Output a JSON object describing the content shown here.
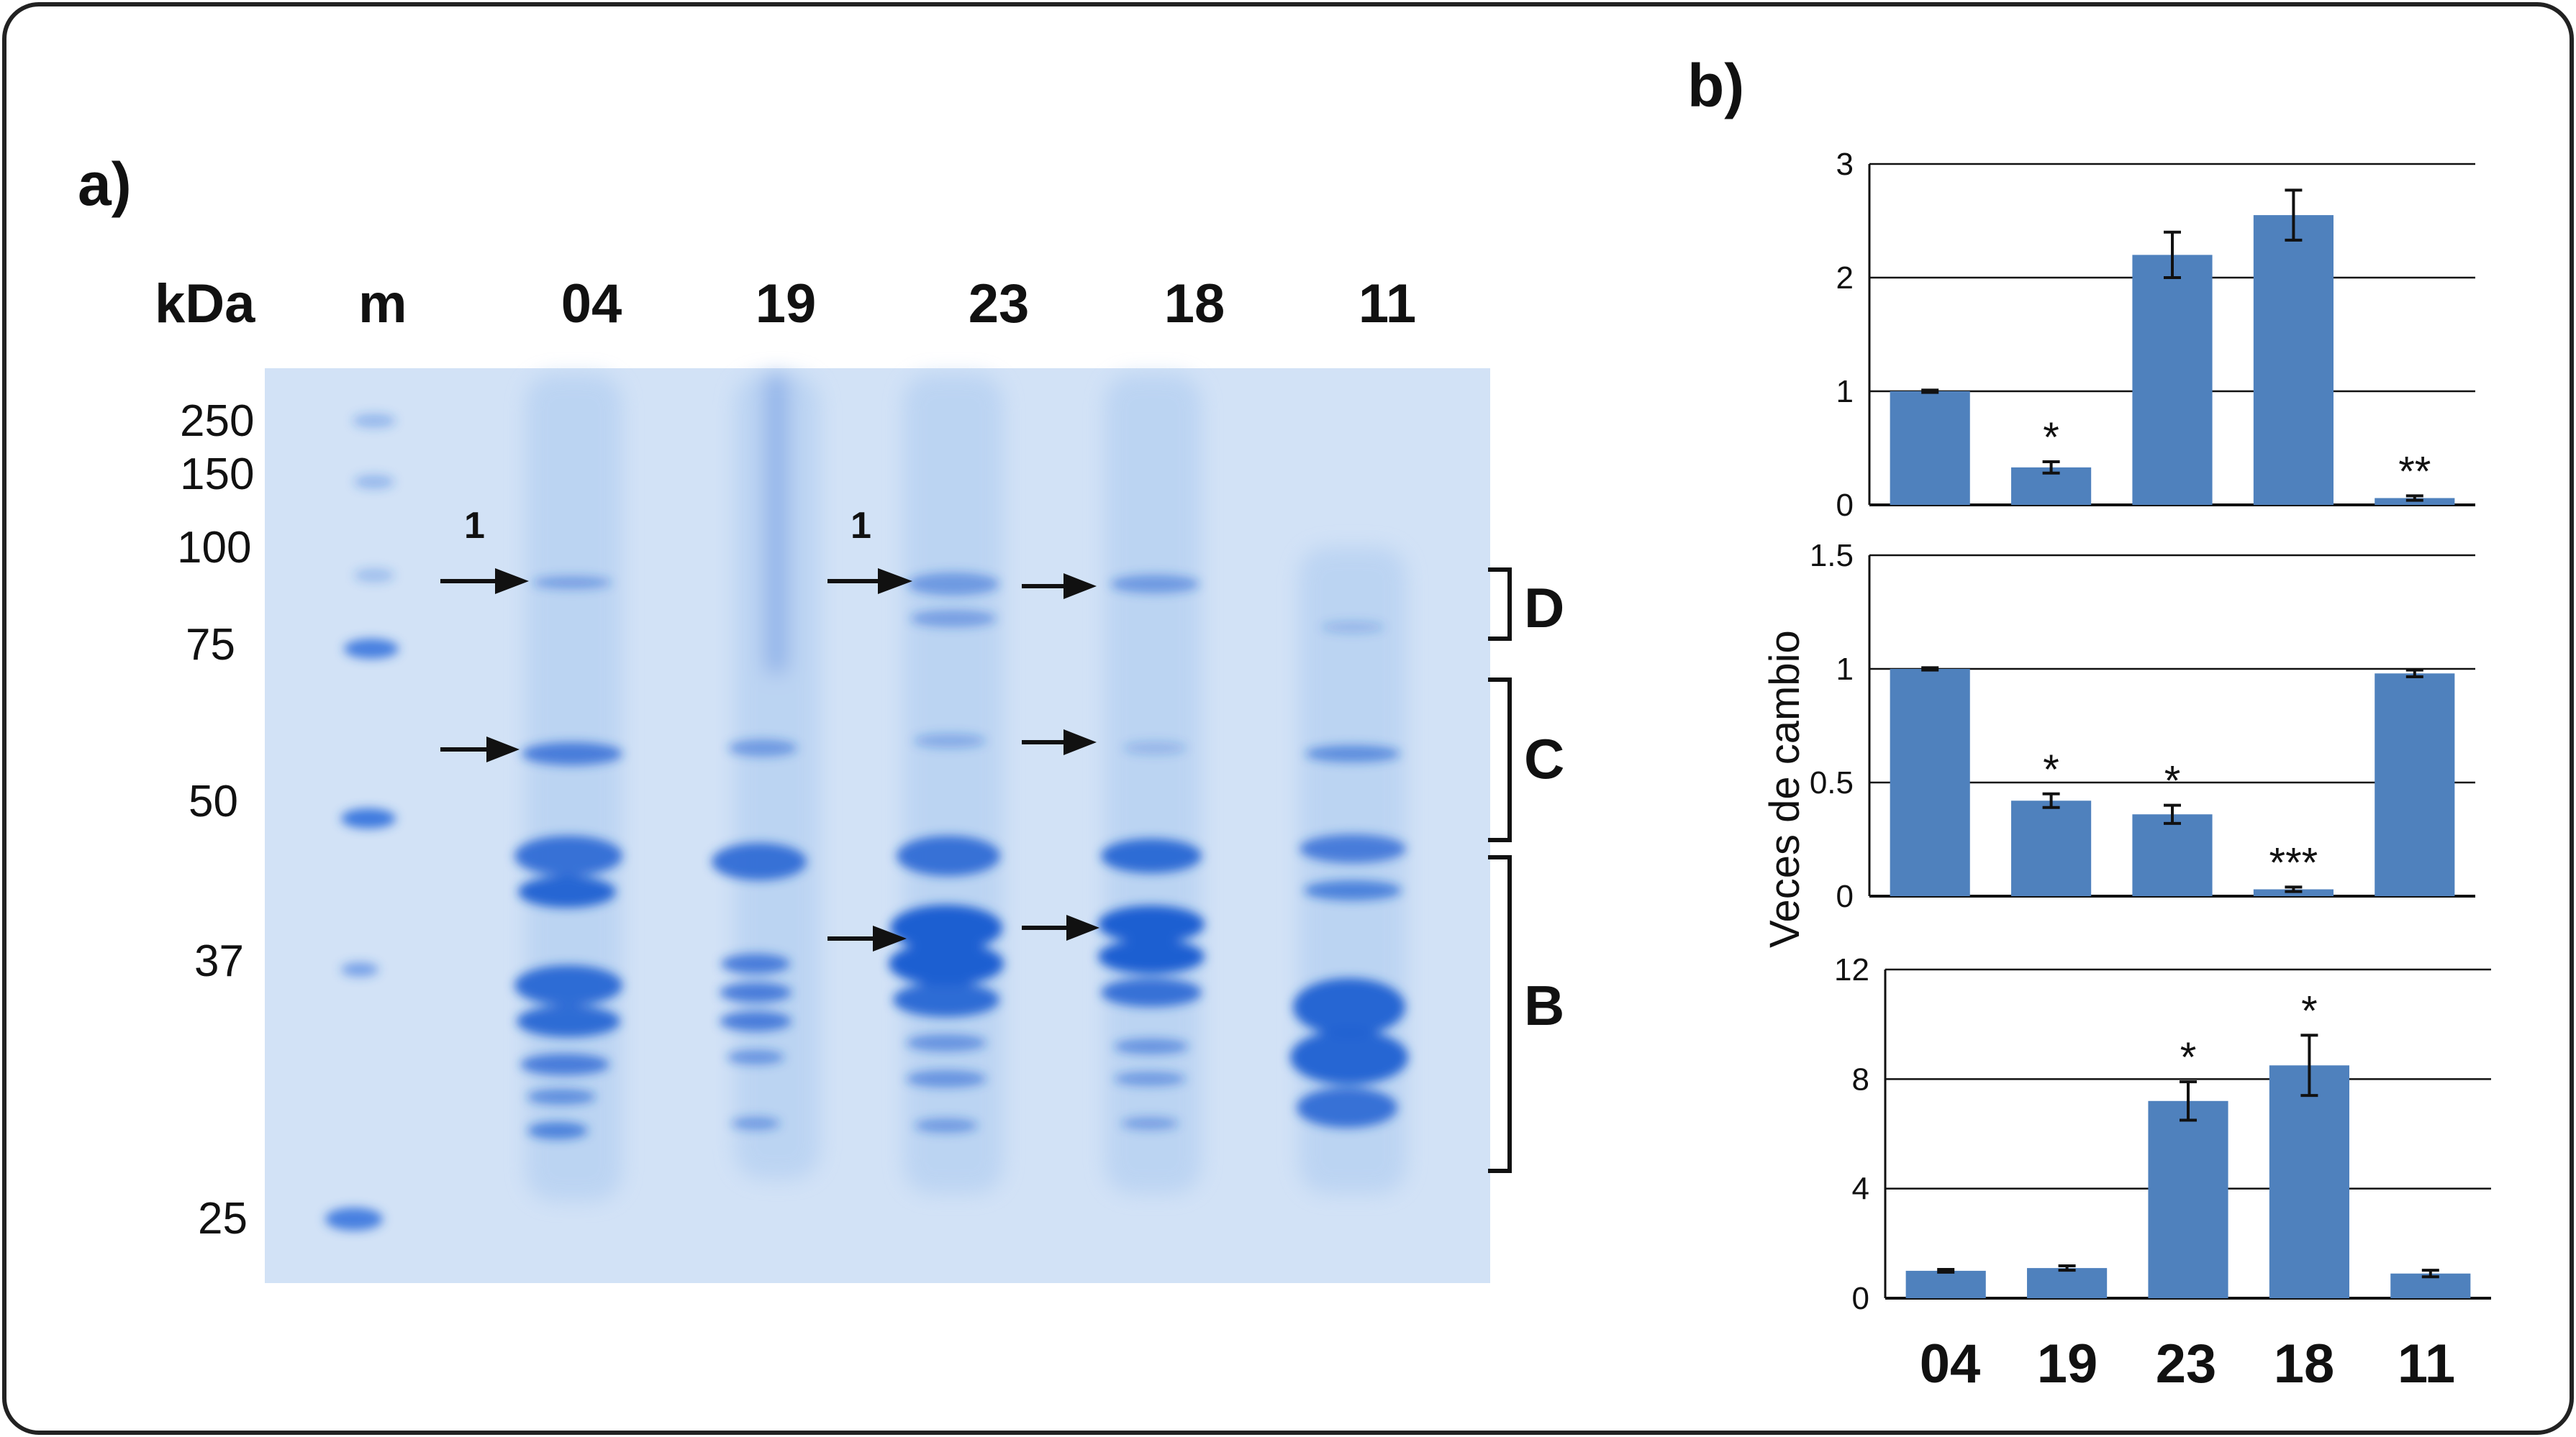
{
  "figure": {
    "panel_a_label": "a)",
    "panel_b_label": "b)",
    "kda_label": "kDa",
    "marker_lane_label": "m",
    "lanes": [
      "04",
      "19",
      "23",
      "18",
      "11"
    ],
    "mw_markers": [
      "250",
      "150",
      "100",
      "75",
      "50",
      "37",
      "25"
    ],
    "arrow_numbers": [
      "1",
      "1"
    ],
    "brackets": [
      "D",
      "C",
      "B"
    ],
    "colors": {
      "gel": "#cfe0f5",
      "band": "#1f5fd1",
      "bar": "#4f81bd",
      "frame": "#222222"
    }
  },
  "chart_data": [
    {
      "type": "bar",
      "categories": [
        "04",
        "19",
        "23",
        "18",
        "11"
      ],
      "values": [
        1.0,
        0.33,
        2.2,
        2.55,
        0.06
      ],
      "errors": [
        0.01,
        0.05,
        0.2,
        0.22,
        0.02
      ],
      "significance": [
        "",
        "*",
        "",
        "",
        "**"
      ],
      "ylim": [
        0,
        3
      ],
      "yticks": [
        "0",
        "1",
        "2",
        "3"
      ],
      "grid": true
    },
    {
      "type": "bar",
      "categories": [
        "04",
        "19",
        "23",
        "18",
        "11"
      ],
      "values": [
        1.0,
        0.42,
        0.36,
        0.03,
        0.98
      ],
      "errors": [
        0.005,
        0.03,
        0.04,
        0.01,
        0.015
      ],
      "significance": [
        "",
        "*",
        "*",
        "***",
        ""
      ],
      "ylim": [
        0,
        1.5
      ],
      "yticks": [
        "0",
        "0.5",
        "1",
        "1.5"
      ],
      "ylabel": "Veces de cambio",
      "grid": true
    },
    {
      "type": "bar",
      "categories": [
        "04",
        "19",
        "23",
        "18",
        "11"
      ],
      "values": [
        1.0,
        1.1,
        7.2,
        8.5,
        0.9
      ],
      "errors": [
        0.05,
        0.08,
        0.7,
        1.1,
        0.12
      ],
      "significance": [
        "",
        "",
        "*",
        "*",
        ""
      ],
      "ylim": [
        0,
        12
      ],
      "yticks": [
        "0",
        "4",
        "8",
        "12"
      ],
      "xticks": [
        "04",
        "19",
        "23",
        "18",
        "11"
      ],
      "grid": true
    }
  ]
}
